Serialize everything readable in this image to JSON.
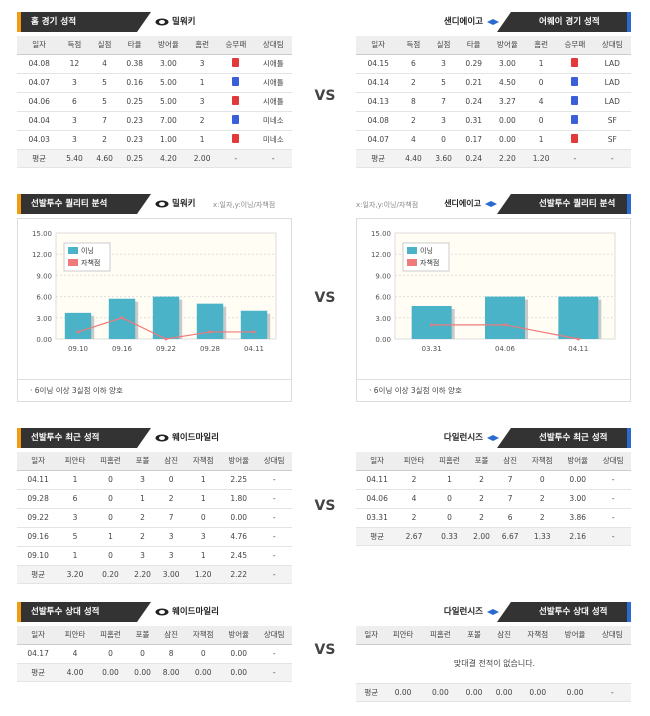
{
  "vs_label": "VS",
  "sec1": {
    "left": {
      "header": "홈 경기 성적",
      "team": "밀워키",
      "columns": [
        "일자",
        "득점",
        "실점",
        "타율",
        "방어율",
        "홈런",
        "승무패",
        "상대팀"
      ],
      "rows": [
        [
          "04.08",
          "12",
          "4",
          "0.38",
          "3.00",
          "3",
          "승",
          "시애틀"
        ],
        [
          "04.07",
          "3",
          "5",
          "0.16",
          "5.00",
          "1",
          "패",
          "시애틀"
        ],
        [
          "04.06",
          "6",
          "5",
          "0.25",
          "5.00",
          "3",
          "승",
          "시애틀"
        ],
        [
          "04.04",
          "3",
          "7",
          "0.23",
          "7.00",
          "2",
          "패",
          "미네소"
        ],
        [
          "04.03",
          "3",
          "2",
          "0.23",
          "1.00",
          "1",
          "승",
          "미네소"
        ]
      ],
      "avg": [
        "평균",
        "5.40",
        "4.60",
        "0.25",
        "4.20",
        "2.00",
        "-",
        "-"
      ]
    },
    "right": {
      "header": "어웨이 경기 성적",
      "team": "샌디에이고",
      "columns": [
        "일자",
        "득점",
        "실점",
        "타율",
        "방어율",
        "홈런",
        "승무패",
        "상대팀"
      ],
      "rows": [
        [
          "04.15",
          "6",
          "3",
          "0.29",
          "3.00",
          "1",
          "승",
          "LAD"
        ],
        [
          "04.14",
          "2",
          "5",
          "0.21",
          "4.50",
          "0",
          "패",
          "LAD"
        ],
        [
          "04.13",
          "8",
          "7",
          "0.24",
          "3.27",
          "4",
          "패",
          "LAD"
        ],
        [
          "04.08",
          "2",
          "3",
          "0.31",
          "0.00",
          "0",
          "패",
          "SF"
        ],
        [
          "04.07",
          "4",
          "0",
          "0.17",
          "0.00",
          "1",
          "승",
          "SF"
        ]
      ],
      "avg": [
        "평균",
        "4.40",
        "3.60",
        "0.24",
        "2.20",
        "1.20",
        "-",
        "-"
      ]
    }
  },
  "sec2": {
    "left": {
      "header": "선발투수 퀄리티 분석",
      "team": "밀워키",
      "axis_note": "x:일자,y:이닝/자책점",
      "footnote": "· 6이닝 이상 3실점 이하 양호"
    },
    "right": {
      "header": "선발투수 퀄리티 분석",
      "team": "샌디에이고",
      "axis_note": "x:일자,y:이닝/자책점",
      "footnote": "· 6이닝 이상 3실점 이하 양호"
    }
  },
  "chart_data": [
    {
      "type": "bar",
      "categories": [
        "09.10",
        "09.16",
        "09.22",
        "09.28",
        "04.11"
      ],
      "series": [
        {
          "name": "이닝",
          "values": [
            3.7,
            5.7,
            6.0,
            5.0,
            4.0
          ],
          "color": "#4bb3c8"
        },
        {
          "name": "자책점",
          "values": [
            1,
            3,
            0,
            1,
            1
          ],
          "color": "#f07a7a",
          "type": "line"
        }
      ],
      "ylim": [
        0,
        15
      ],
      "yticks": [
        "0.00",
        "3.00",
        "6.00",
        "9.00",
        "12.00",
        "15.00"
      ],
      "grid": true,
      "legend": "top-left"
    },
    {
      "type": "bar",
      "categories": [
        "03.31",
        "04.06",
        "04.11"
      ],
      "series": [
        {
          "name": "이닝",
          "values": [
            4.67,
            6.0,
            6.0
          ],
          "color": "#4bb3c8"
        },
        {
          "name": "자책점",
          "values": [
            2,
            2,
            0
          ],
          "color": "#f07a7a",
          "type": "line"
        }
      ],
      "ylim": [
        0,
        15
      ],
      "yticks": [
        "0.00",
        "3.00",
        "6.00",
        "9.00",
        "12.00",
        "15.00"
      ],
      "grid": true,
      "legend": "top-left"
    }
  ],
  "sec3": {
    "left": {
      "header": "선발투수 최근 성적",
      "team": "웨이드마일리",
      "columns": [
        "일자",
        "피안타",
        "피홈런",
        "포볼",
        "삼진",
        "자책점",
        "방어율",
        "상대팀"
      ],
      "rows": [
        [
          "04.11",
          "1",
          "0",
          "3",
          "0",
          "1",
          "2.25",
          "-"
        ],
        [
          "09.28",
          "6",
          "0",
          "1",
          "2",
          "1",
          "1.80",
          "-"
        ],
        [
          "09.22",
          "3",
          "0",
          "2",
          "7",
          "0",
          "0.00",
          "-"
        ],
        [
          "09.16",
          "5",
          "1",
          "2",
          "3",
          "3",
          "4.76",
          "-"
        ],
        [
          "09.10",
          "1",
          "0",
          "3",
          "3",
          "1",
          "2.45",
          "-"
        ]
      ],
      "avg": [
        "평균",
        "3.20",
        "0.20",
        "2.20",
        "3.00",
        "1.20",
        "2.22",
        "-"
      ]
    },
    "right": {
      "header": "선발투수 최근 성적",
      "team": "다일런시즈",
      "columns": [
        "일자",
        "피안타",
        "피홈런",
        "포볼",
        "삼진",
        "자책점",
        "방어율",
        "상대팀"
      ],
      "rows": [
        [
          "04.11",
          "2",
          "1",
          "2",
          "7",
          "0",
          "0.00",
          "-"
        ],
        [
          "04.06",
          "4",
          "0",
          "2",
          "7",
          "2",
          "3.00",
          "-"
        ],
        [
          "03.31",
          "2",
          "0",
          "2",
          "6",
          "2",
          "3.86",
          "-"
        ]
      ],
      "avg": [
        "평균",
        "2.67",
        "0.33",
        "2.00",
        "6.67",
        "1.33",
        "2.16",
        "-"
      ]
    }
  },
  "sec4": {
    "left": {
      "header": "선발투수 상대 성적",
      "team": "웨이드마일리",
      "columns": [
        "일자",
        "피안타",
        "피홈런",
        "포볼",
        "삼진",
        "자책점",
        "방어율",
        "상대팀"
      ],
      "rows": [
        [
          "04.17",
          "4",
          "0",
          "0",
          "8",
          "0",
          "0.00",
          "-"
        ]
      ],
      "avg": [
        "평균",
        "4.00",
        "0.00",
        "0.00",
        "8.00",
        "0.00",
        "0.00",
        "-"
      ]
    },
    "right": {
      "header": "선발투수 상대 성적",
      "team": "다일런시즈",
      "columns": [
        "일자",
        "피안타",
        "피홈런",
        "포볼",
        "삼진",
        "자책점",
        "방어율",
        "상대팀"
      ],
      "message": "맞대결 전적이 없습니다.",
      "avg": [
        "평균",
        "0.00",
        "0.00",
        "0.00",
        "0.00",
        "0.00",
        "0.00",
        "-"
      ]
    }
  }
}
